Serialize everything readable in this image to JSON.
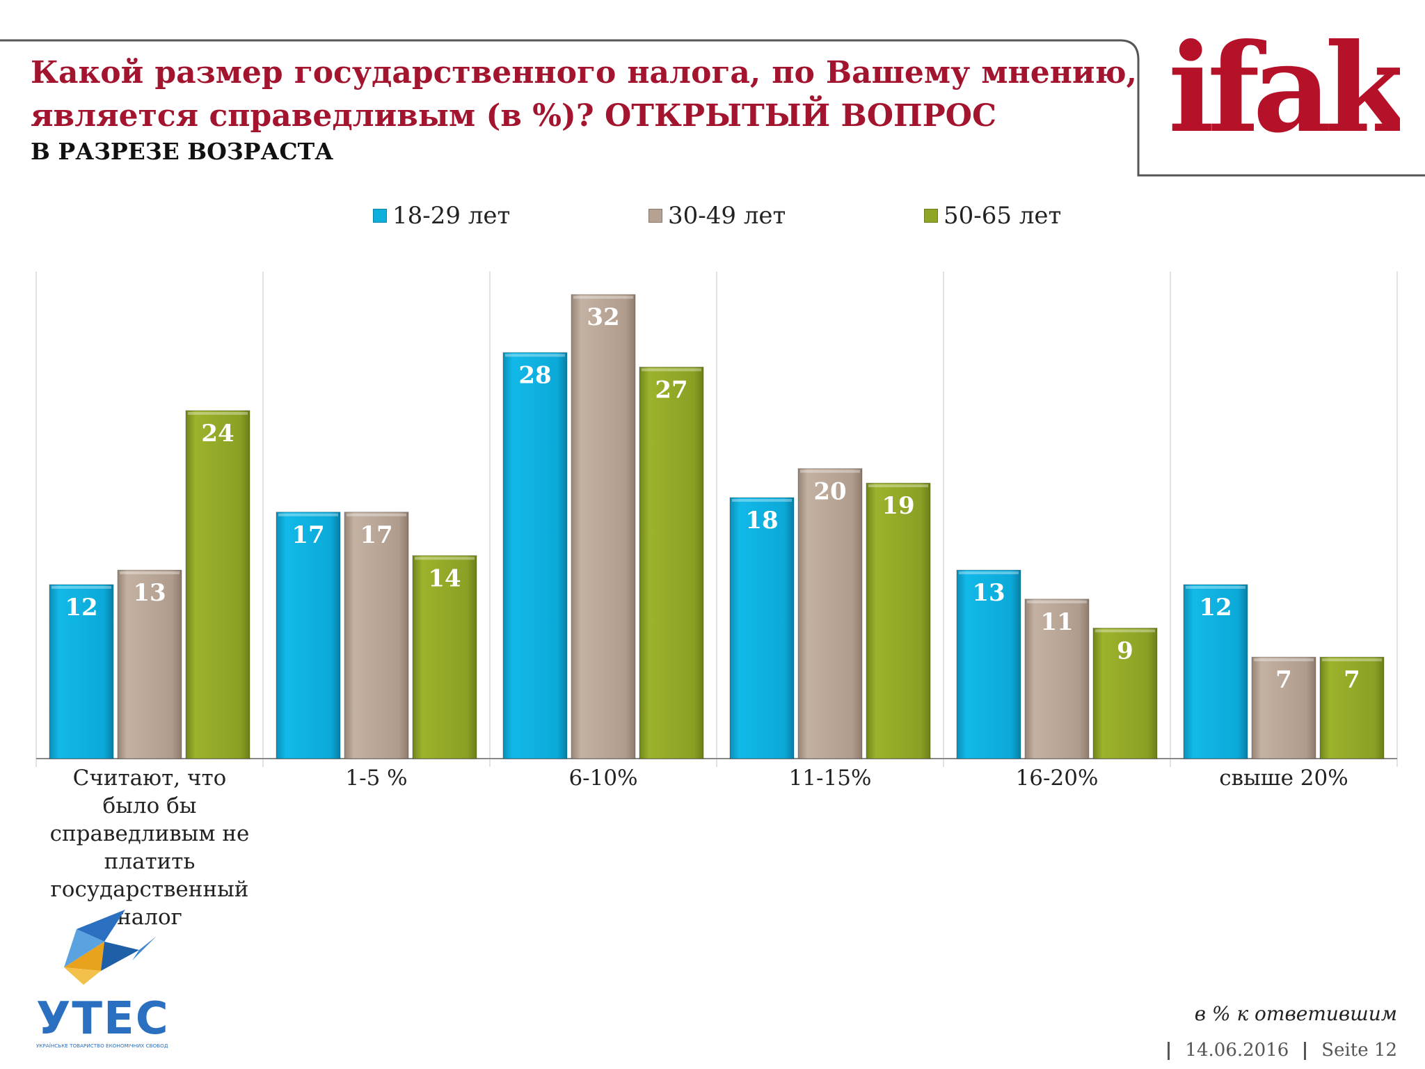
{
  "header": {
    "title": "Какой размер государственного налога, по Вашему мнению, является справедливым (в %)? ОТКРЫТЫЙ ВОПРОС",
    "subtitle": "В РАЗРЕЗЕ ВОЗРАСТА",
    "logo_text": "ifak"
  },
  "colors": {
    "title": "#a3152f",
    "series": [
      "#0eafdd",
      "#b5a293",
      "#8fa526"
    ],
    "logo": "#b5122a"
  },
  "chart_data": {
    "type": "bar",
    "title": "",
    "xlabel": "",
    "ylabel": "",
    "ylim": [
      0,
      35
    ],
    "grid": false,
    "legend_position": "top",
    "categories": [
      "Считают, что было бы справедливым не платить государственный налог",
      "1-5 %",
      "6-10%",
      "11-15%",
      "16-20%",
      "свыше 20%"
    ],
    "series": [
      {
        "name": "18-29 лет",
        "values": [
          12,
          17,
          28,
          18,
          13,
          12
        ]
      },
      {
        "name": "30-49 лет",
        "values": [
          13,
          17,
          32,
          20,
          11,
          7
        ]
      },
      {
        "name": "50-65 лет",
        "values": [
          24,
          14,
          27,
          19,
          9,
          7
        ]
      }
    ]
  },
  "footer": {
    "note": "в % к ответившим",
    "date": "14.06.2016",
    "page": "Seite 12",
    "org_logo_text": "УТЕС",
    "org_logo_subtext": "УКРАЇНСЬКЕ ТОВАРИСТВО ЕКОНОМІЧНИХ СВОБОД"
  }
}
